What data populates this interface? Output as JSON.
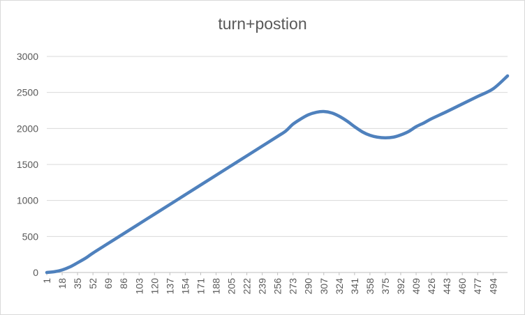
{
  "chart_data": {
    "type": "line",
    "title": "turn+postion",
    "xlabel": "",
    "ylabel": "",
    "ylim": [
      0,
      3000
    ],
    "yticks": [
      0,
      500,
      1000,
      1500,
      2000,
      2500,
      3000
    ],
    "xlim": [
      1,
      510
    ],
    "xticks": [
      1,
      18,
      35,
      52,
      69,
      86,
      103,
      120,
      137,
      154,
      171,
      188,
      205,
      222,
      239,
      256,
      273,
      290,
      307,
      324,
      341,
      358,
      375,
      392,
      409,
      426,
      443,
      460,
      477,
      494
    ],
    "grid": true,
    "legend": "none",
    "series_color": "#4F81BD",
    "series": [
      {
        "x": [
          1,
          10,
          18,
          27,
          35,
          44,
          52,
          69,
          86,
          103,
          120,
          137,
          154,
          171,
          188,
          205,
          222,
          239,
          256,
          265,
          273,
          282,
          290,
          299,
          307,
          316,
          324,
          333,
          341,
          350,
          358,
          366,
          375,
          384,
          392,
          401,
          409,
          418,
          426,
          443,
          460,
          477,
          494,
          510
        ],
        "y": [
          0,
          12,
          35,
          80,
          135,
          200,
          270,
          405,
          540,
          675,
          810,
          945,
          1080,
          1215,
          1350,
          1485,
          1620,
          1755,
          1890,
          1965,
          2060,
          2135,
          2190,
          2225,
          2235,
          2215,
          2170,
          2100,
          2025,
          1950,
          1905,
          1880,
          1870,
          1880,
          1910,
          1960,
          2025,
          2080,
          2135,
          2235,
          2340,
          2445,
          2550,
          2730
        ]
      }
    ]
  }
}
